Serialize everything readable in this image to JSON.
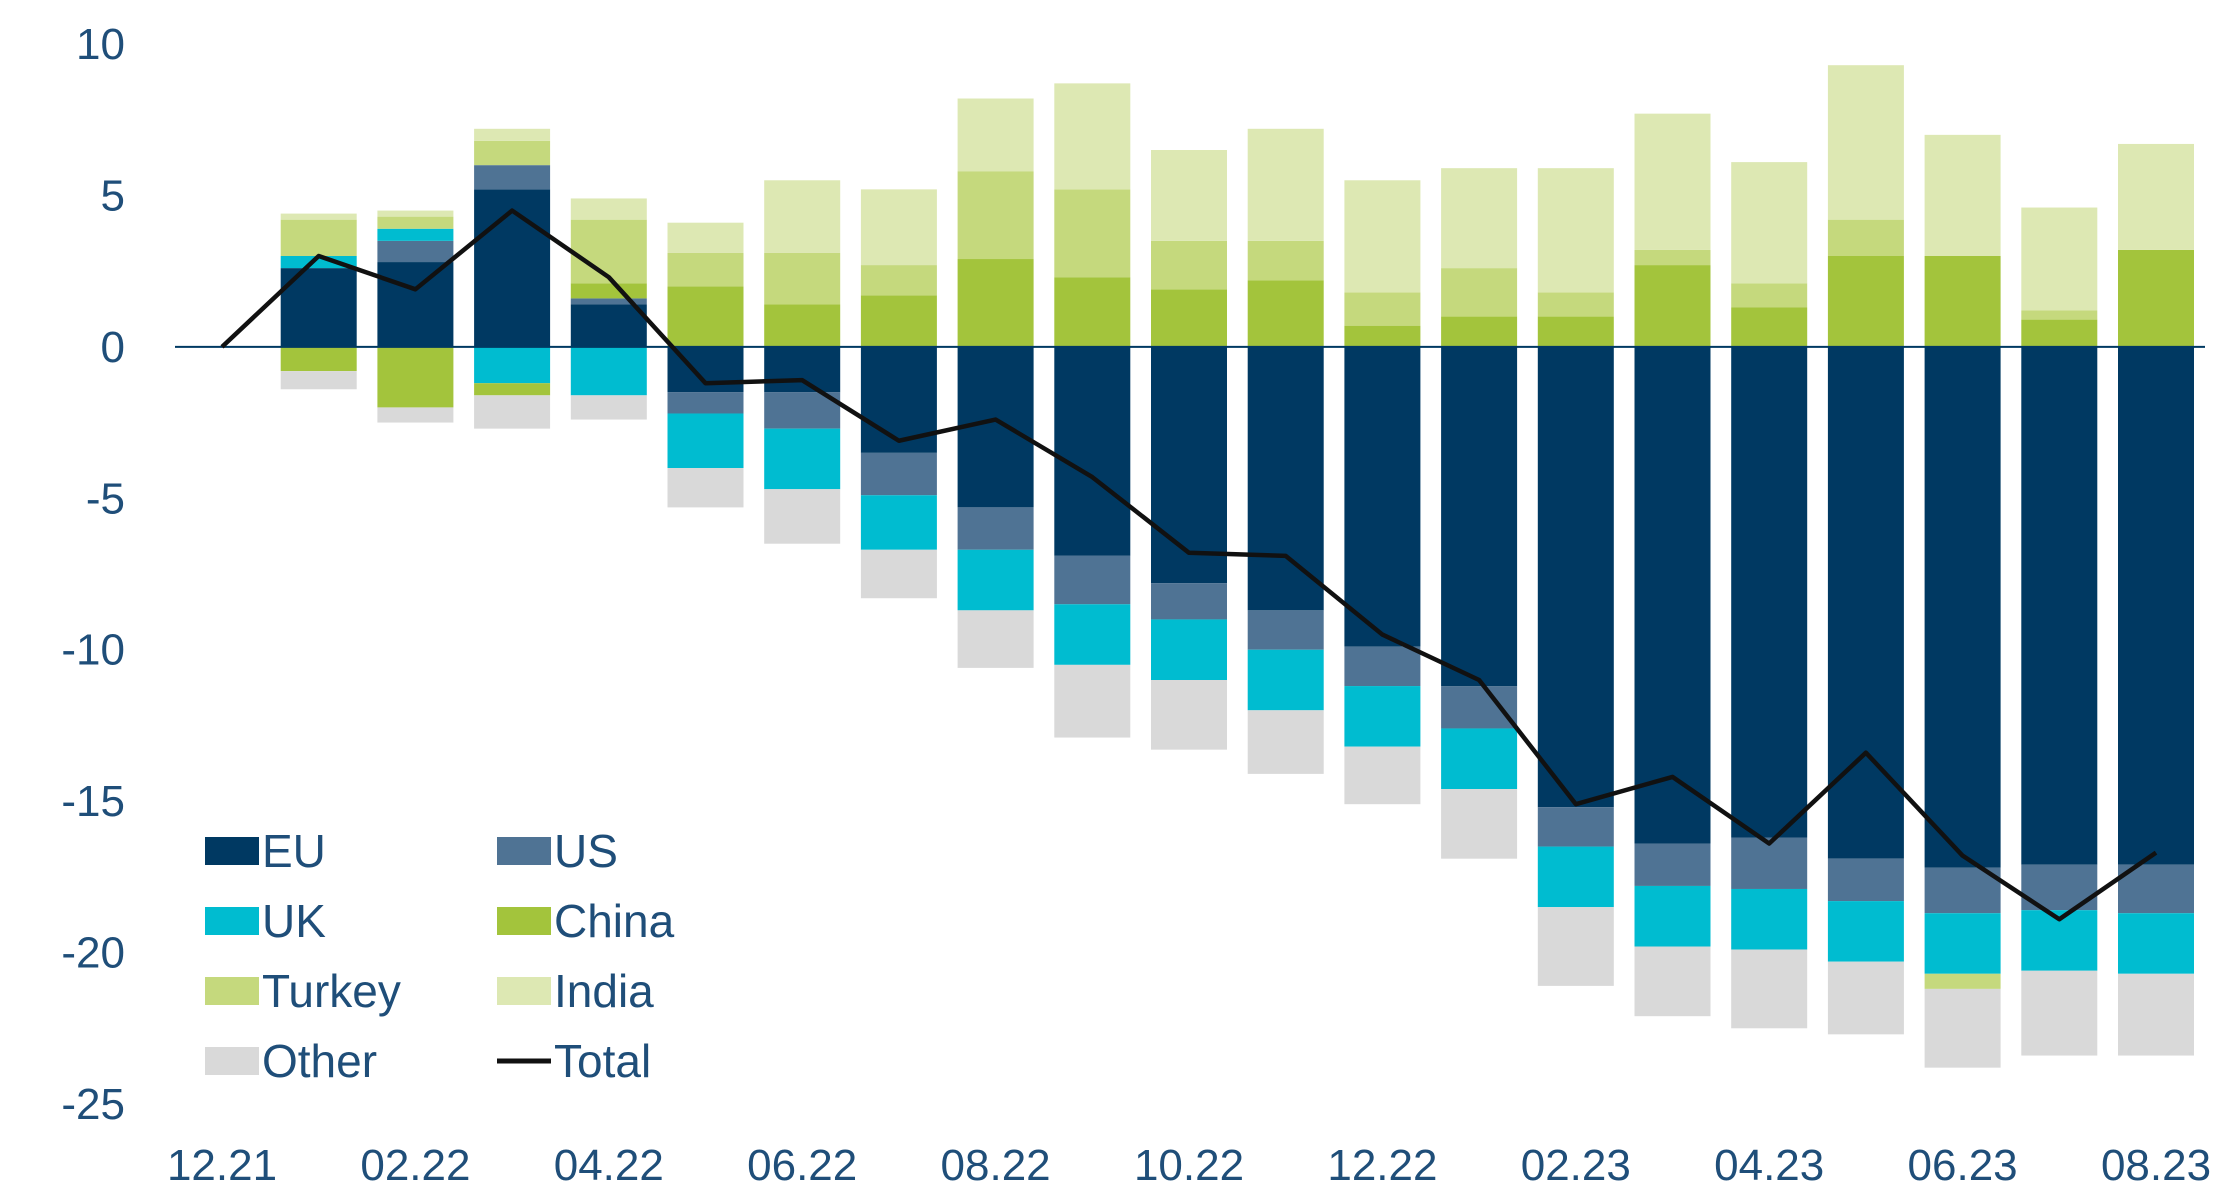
{
  "chart_data": {
    "type": "bar",
    "stacked": true,
    "categories": [
      "12.21",
      "01.22",
      "02.22",
      "03.22",
      "04.22",
      "05.22",
      "06.22",
      "07.22",
      "08.22",
      "09.22",
      "10.22",
      "11.22",
      "12.22",
      "01.23",
      "02.23",
      "03.23",
      "04.23",
      "05.23",
      "06.23",
      "07.23",
      "08.23"
    ],
    "x_tick_labels": [
      "12.21",
      "02.22",
      "04.22",
      "06.22",
      "08.22",
      "10.22",
      "12.22",
      "02.23",
      "04.23",
      "06.23",
      "08.23"
    ],
    "y_ticks": [
      10,
      5,
      0,
      -5,
      -10,
      -15,
      -20,
      -25
    ],
    "ylim": [
      -25,
      10
    ],
    "grid": false,
    "legend_position": "bottom-left",
    "title": "",
    "xlabel": "",
    "ylabel": "",
    "series": [
      {
        "name": "EU",
        "color": "#003962",
        "values": [
          0,
          2.6,
          2.8,
          5.2,
          1.4,
          -1.5,
          -1.5,
          -3.5,
          -5.3,
          -6.9,
          -7.8,
          -8.7,
          -9.9,
          -11.2,
          -15.2,
          -16.4,
          -16.2,
          -16.9,
          -17.2,
          -17.1,
          -17.1
        ]
      },
      {
        "name": "US",
        "color": "#4f7394",
        "values": [
          0,
          0.0,
          0.7,
          0.8,
          0.2,
          -0.7,
          -1.2,
          -1.4,
          -1.4,
          -1.6,
          -1.2,
          -1.3,
          -1.3,
          -1.4,
          -1.3,
          -1.4,
          -1.7,
          -1.4,
          -1.5,
          -1.5,
          -1.6
        ]
      },
      {
        "name": "UK",
        "color": "#00bcd0",
        "values": [
          0,
          0.4,
          0.4,
          -1.2,
          -1.6,
          -1.8,
          -2.0,
          -1.8,
          -2.0,
          -2.0,
          -2.0,
          -2.0,
          -2.0,
          -2.0,
          -2.0,
          -2.0,
          -2.0,
          -2.0,
          -2.0,
          -2.0,
          -2.0
        ]
      },
      {
        "name": "China",
        "color": "#a3c43c",
        "values": [
          0,
          -0.8,
          -2.0,
          -0.4,
          0.5,
          2.0,
          1.4,
          1.7,
          2.9,
          2.3,
          1.9,
          2.2,
          0.7,
          1.0,
          1.0,
          2.7,
          1.3,
          3.0,
          3.0,
          0.9,
          3.2
        ]
      },
      {
        "name": "Turkey",
        "color": "#c5d97d",
        "values": [
          0,
          1.2,
          0.4,
          0.8,
          2.1,
          1.1,
          1.7,
          1.0,
          2.9,
          2.9,
          1.6,
          1.3,
          1.1,
          1.6,
          0.8,
          0.5,
          0.8,
          1.2,
          -0.5,
          0.3,
          0.0
        ]
      },
      {
        "name": "India",
        "color": "#dde8b3",
        "values": [
          0,
          0.2,
          0.2,
          0.4,
          0.7,
          1.0,
          2.4,
          2.5,
          2.4,
          3.5,
          3.0,
          3.7,
          3.7,
          3.3,
          4.1,
          4.5,
          4.0,
          5.1,
          4.0,
          3.4,
          3.5
        ]
      },
      {
        "name": "Other",
        "color": "#d9d9d9",
        "values": [
          0,
          -0.6,
          -0.5,
          -1.1,
          -0.8,
          -1.3,
          -1.8,
          -1.6,
          -1.9,
          -2.4,
          -2.3,
          -2.1,
          -1.9,
          -2.3,
          -2.6,
          -2.3,
          -2.6,
          -2.4,
          -2.6,
          -2.8,
          -2.7
        ]
      }
    ],
    "line_series": {
      "name": "Total",
      "color": "#111111",
      "values": [
        0,
        3.0,
        1.9,
        4.5,
        2.3,
        -1.2,
        -1.1,
        -3.1,
        -2.4,
        -4.3,
        -6.8,
        -6.9,
        -9.5,
        -11.0,
        -15.1,
        -14.2,
        -16.4,
        -13.4,
        -16.8,
        -18.9,
        -16.7
      ]
    }
  }
}
